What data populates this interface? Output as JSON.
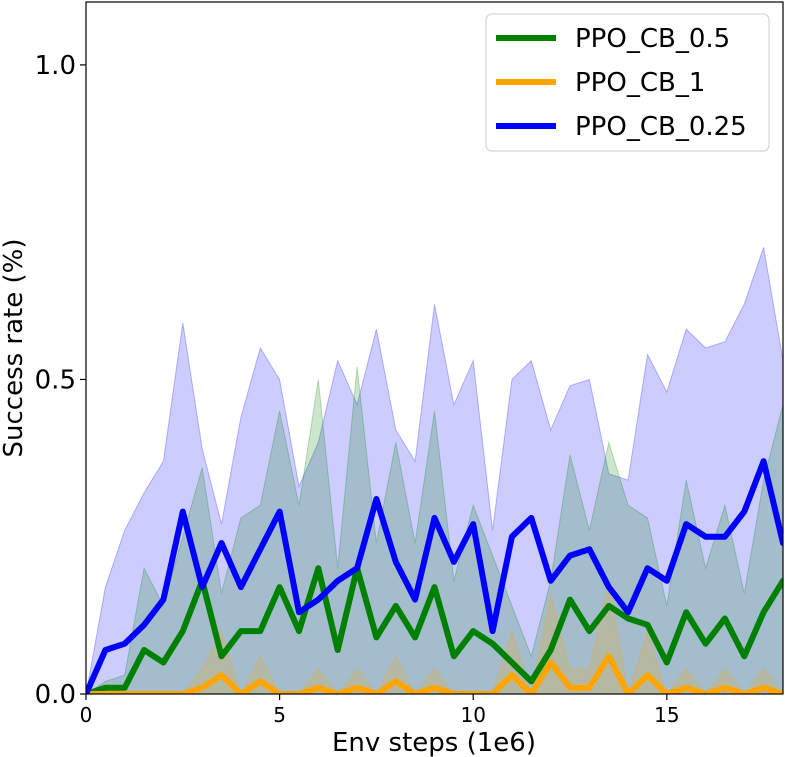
{
  "chart_data": {
    "type": "line",
    "title": "",
    "xlabel": "Env steps (1e6)",
    "ylabel": "Success rate (%)",
    "xlim": [
      0,
      18
    ],
    "ylim": [
      0,
      1.1
    ],
    "xticks": [
      0,
      5,
      10,
      15
    ],
    "xtick_labels": [
      "0",
      "5",
      "10",
      "15"
    ],
    "yticks": [
      0.0,
      0.5,
      1.0
    ],
    "ytick_labels": [
      "0.0",
      "0.5",
      "1.0"
    ],
    "grid": false,
    "legend_position": "top-right",
    "series": [
      {
        "name": "PPO_CB_0.5",
        "color": "#008000",
        "x": [
          0,
          0.5,
          1,
          1.5,
          2,
          2.5,
          3,
          3.5,
          4,
          4.5,
          5,
          5.5,
          6,
          6.5,
          7,
          7.5,
          8,
          8.5,
          9,
          9.5,
          10,
          10.5,
          11,
          11.5,
          12,
          12.5,
          13,
          13.5,
          14,
          14.5,
          15,
          15.5,
          16,
          16.5,
          17,
          17.5,
          18
        ],
        "y": [
          0.0,
          0.01,
          0.01,
          0.07,
          0.05,
          0.1,
          0.18,
          0.06,
          0.1,
          0.1,
          0.17,
          0.1,
          0.2,
          0.07,
          0.2,
          0.09,
          0.14,
          0.09,
          0.17,
          0.06,
          0.1,
          0.08,
          0.05,
          0.02,
          0.07,
          0.15,
          0.1,
          0.14,
          0.12,
          0.11,
          0.05,
          0.13,
          0.08,
          0.12,
          0.06,
          0.13,
          0.18
        ],
        "lower": [
          0.0,
          0.0,
          0.0,
          0.0,
          0.0,
          0.0,
          0.0,
          0.0,
          0.0,
          0.0,
          0.0,
          0.0,
          0.0,
          0.0,
          0.0,
          0.0,
          0.0,
          0.0,
          0.0,
          0.0,
          0.0,
          0.0,
          0.0,
          0.0,
          0.0,
          0.0,
          0.0,
          0.0,
          0.0,
          0.0,
          0.0,
          0.0,
          0.0,
          0.0,
          0.0,
          0.0,
          0.0
        ],
        "upper": [
          0.0,
          0.02,
          0.03,
          0.2,
          0.14,
          0.25,
          0.36,
          0.16,
          0.28,
          0.3,
          0.45,
          0.3,
          0.5,
          0.2,
          0.52,
          0.24,
          0.4,
          0.24,
          0.45,
          0.18,
          0.3,
          0.22,
          0.14,
          0.06,
          0.18,
          0.38,
          0.26,
          0.4,
          0.3,
          0.28,
          0.14,
          0.34,
          0.2,
          0.3,
          0.16,
          0.34,
          0.46
        ]
      },
      {
        "name": "PPO_CB_1",
        "color": "#FFA500",
        "x": [
          0,
          0.5,
          1,
          1.5,
          2,
          2.5,
          3,
          3.5,
          4,
          4.5,
          5,
          5.5,
          6,
          6.5,
          7,
          7.5,
          8,
          8.5,
          9,
          9.5,
          10,
          10.5,
          11,
          11.5,
          12,
          12.5,
          13,
          13.5,
          14,
          14.5,
          15,
          15.5,
          16,
          16.5,
          17,
          17.5,
          18
        ],
        "y": [
          0.0,
          0.0,
          0.0,
          0.0,
          0.0,
          0.0,
          0.01,
          0.03,
          0.0,
          0.02,
          0.0,
          0.0,
          0.01,
          0.0,
          0.01,
          0.0,
          0.02,
          0.0,
          0.01,
          0.0,
          0.0,
          0.0,
          0.03,
          0.0,
          0.05,
          0.01,
          0.01,
          0.06,
          0.0,
          0.03,
          0.0,
          0.01,
          0.0,
          0.01,
          0.0,
          0.01,
          0.0
        ],
        "lower": [
          0.0,
          0.0,
          0.0,
          0.0,
          0.0,
          0.0,
          0.0,
          0.0,
          0.0,
          0.0,
          0.0,
          0.0,
          0.0,
          0.0,
          0.0,
          0.0,
          0.0,
          0.0,
          0.0,
          0.0,
          0.0,
          0.0,
          0.0,
          0.0,
          0.0,
          0.0,
          0.0,
          0.0,
          0.0,
          0.0,
          0.0,
          0.0,
          0.0,
          0.0,
          0.0,
          0.0,
          0.0
        ],
        "upper": [
          0.0,
          0.0,
          0.0,
          0.0,
          0.0,
          0.0,
          0.04,
          0.1,
          0.0,
          0.06,
          0.0,
          0.0,
          0.04,
          0.0,
          0.04,
          0.0,
          0.06,
          0.0,
          0.04,
          0.0,
          0.0,
          0.0,
          0.1,
          0.0,
          0.16,
          0.04,
          0.04,
          0.18,
          0.0,
          0.1,
          0.0,
          0.04,
          0.0,
          0.04,
          0.0,
          0.04,
          0.0
        ]
      },
      {
        "name": "PPO_CB_0.25",
        "color": "#0000FF",
        "x": [
          0,
          0.5,
          1,
          1.5,
          2,
          2.5,
          3,
          3.5,
          4,
          4.5,
          5,
          5.5,
          6,
          6.5,
          7,
          7.5,
          8,
          8.5,
          9,
          9.5,
          10,
          10.5,
          11,
          11.5,
          12,
          12.5,
          13,
          13.5,
          14,
          14.5,
          15,
          15.5,
          16,
          16.5,
          17,
          17.5,
          18
        ],
        "y": [
          0.0,
          0.07,
          0.08,
          0.11,
          0.15,
          0.29,
          0.17,
          0.24,
          0.17,
          0.23,
          0.29,
          0.13,
          0.15,
          0.18,
          0.2,
          0.31,
          0.21,
          0.15,
          0.28,
          0.21,
          0.27,
          0.1,
          0.25,
          0.28,
          0.18,
          0.22,
          0.23,
          0.17,
          0.13,
          0.2,
          0.18,
          0.27,
          0.25,
          0.25,
          0.29,
          0.37,
          0.24
        ],
        "lower": [
          0.0,
          0.0,
          0.0,
          0.0,
          0.0,
          0.0,
          0.0,
          0.0,
          0.0,
          0.0,
          0.0,
          0.0,
          0.0,
          0.0,
          0.0,
          0.0,
          0.0,
          0.0,
          0.0,
          0.0,
          0.0,
          0.0,
          0.0,
          0.0,
          0.0,
          0.0,
          0.0,
          0.0,
          0.0,
          0.0,
          0.0,
          0.0,
          0.0,
          0.0,
          0.0,
          0.0,
          0.0
        ],
        "upper": [
          0.0,
          0.17,
          0.26,
          0.32,
          0.37,
          0.59,
          0.39,
          0.27,
          0.44,
          0.55,
          0.5,
          0.33,
          0.4,
          0.53,
          0.46,
          0.58,
          0.42,
          0.37,
          0.62,
          0.46,
          0.53,
          0.26,
          0.5,
          0.53,
          0.42,
          0.49,
          0.5,
          0.35,
          0.34,
          0.54,
          0.48,
          0.58,
          0.55,
          0.56,
          0.62,
          0.71,
          0.53
        ]
      }
    ]
  }
}
